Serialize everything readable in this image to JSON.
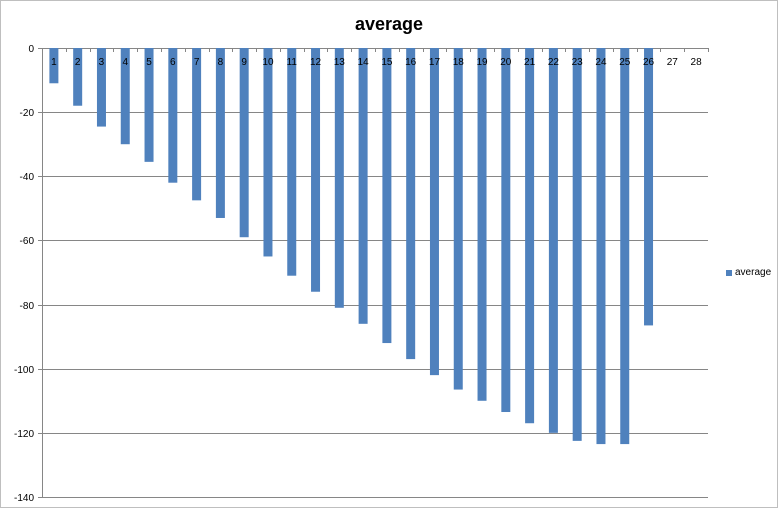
{
  "chart_data": {
    "type": "bar",
    "title": "average",
    "xlabel": "",
    "ylabel": "",
    "categories": [
      "1",
      "2",
      "3",
      "4",
      "5",
      "6",
      "7",
      "8",
      "9",
      "10",
      "11",
      "12",
      "13",
      "14",
      "15",
      "16",
      "17",
      "18",
      "19",
      "20",
      "21",
      "22",
      "23",
      "24",
      "25",
      "26",
      "27",
      "28"
    ],
    "series": [
      {
        "name": "average",
        "color": "#4f81bd",
        "values": [
          -11,
          -18,
          -24.5,
          -30,
          -35.5,
          -42,
          -47.5,
          -53,
          -59,
          -65,
          -71,
          -76,
          -81,
          -86,
          -92,
          -97,
          -102,
          -106.5,
          -110,
          -113.5,
          -117,
          -120,
          -122.5,
          -123.5,
          -123.5,
          -86.5,
          null,
          null
        ]
      }
    ],
    "ylim": [
      -140,
      0
    ],
    "yticks": [
      0,
      -20,
      -40,
      -60,
      -80,
      -100,
      -120,
      -140
    ],
    "grid": true,
    "legend_position": "right"
  }
}
